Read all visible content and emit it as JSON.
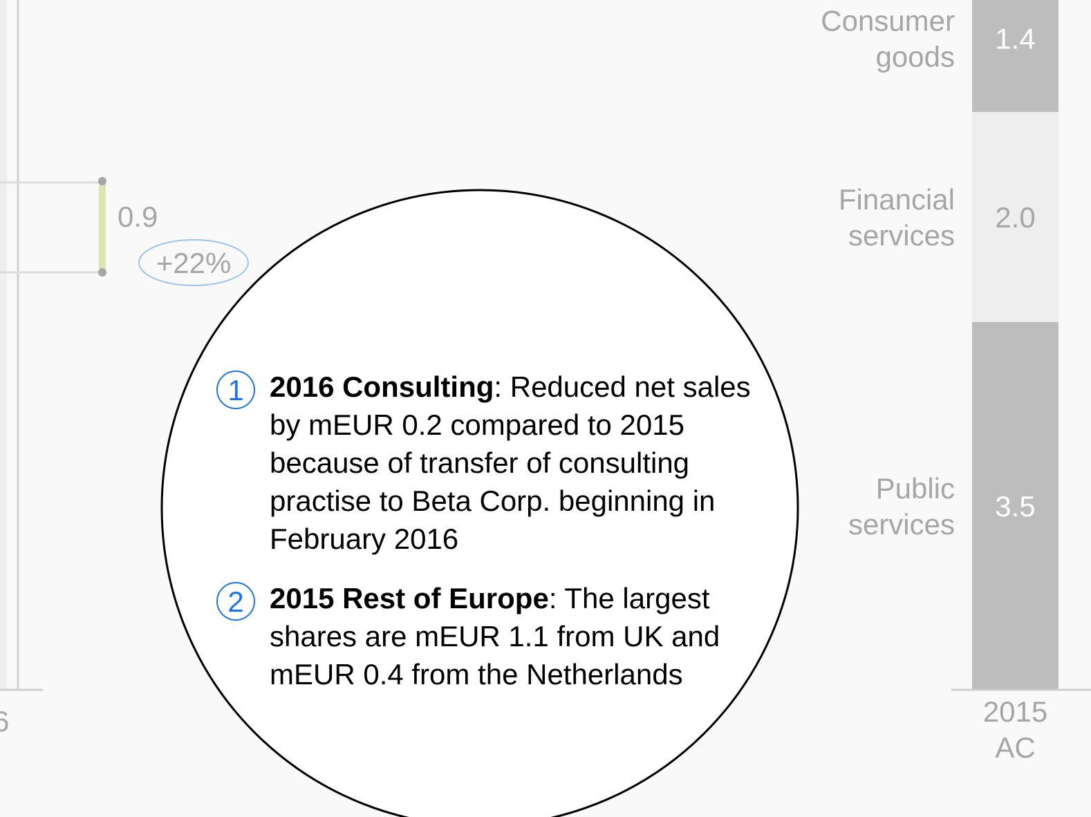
{
  "colors": {
    "background": "#f9f9f9",
    "bar_dark": "#bdbdbd",
    "bar_light": "#eeeeee",
    "axis": "#cfcfcf",
    "label": "#a6a6a6",
    "bar_label_on_dark": "#ffffff",
    "bar_label_on_light": "#a6a6a6",
    "delta_bar": "#dbe5b2",
    "delta_bubble": "#9ec3ee",
    "note_circle_stroke": "#000000",
    "note_number": "#1a73e8"
  },
  "chart_data": {
    "type": "bar",
    "stacked": true,
    "categories": [
      "2015\nAC"
    ],
    "series": [
      {
        "name": "Public\nservices",
        "values": [
          3.5
        ],
        "fill": "dark"
      },
      {
        "name": "Financial\nservices",
        "values": [
          2.0
        ],
        "fill": "light"
      },
      {
        "name": "Consumer\ngoods",
        "values": [
          1.4
        ],
        "fill": "dark"
      }
    ],
    "left_partial_category": "6",
    "difference": {
      "value": "0.9",
      "percent": "+22%"
    }
  },
  "notes": [
    {
      "number": "1",
      "title": "2016 Consulting",
      "text": ": Reduced net sales by mEUR 0.2 compared to 2015 because of transfer of consulting practise to Beta Corp. beginning in February 2016"
    },
    {
      "number": "2",
      "title": "2015 Rest of Europe",
      "text": ": The largest shares are mEUR 1.1 from UK and mEUR 0.4 from the Netherlands"
    }
  ]
}
